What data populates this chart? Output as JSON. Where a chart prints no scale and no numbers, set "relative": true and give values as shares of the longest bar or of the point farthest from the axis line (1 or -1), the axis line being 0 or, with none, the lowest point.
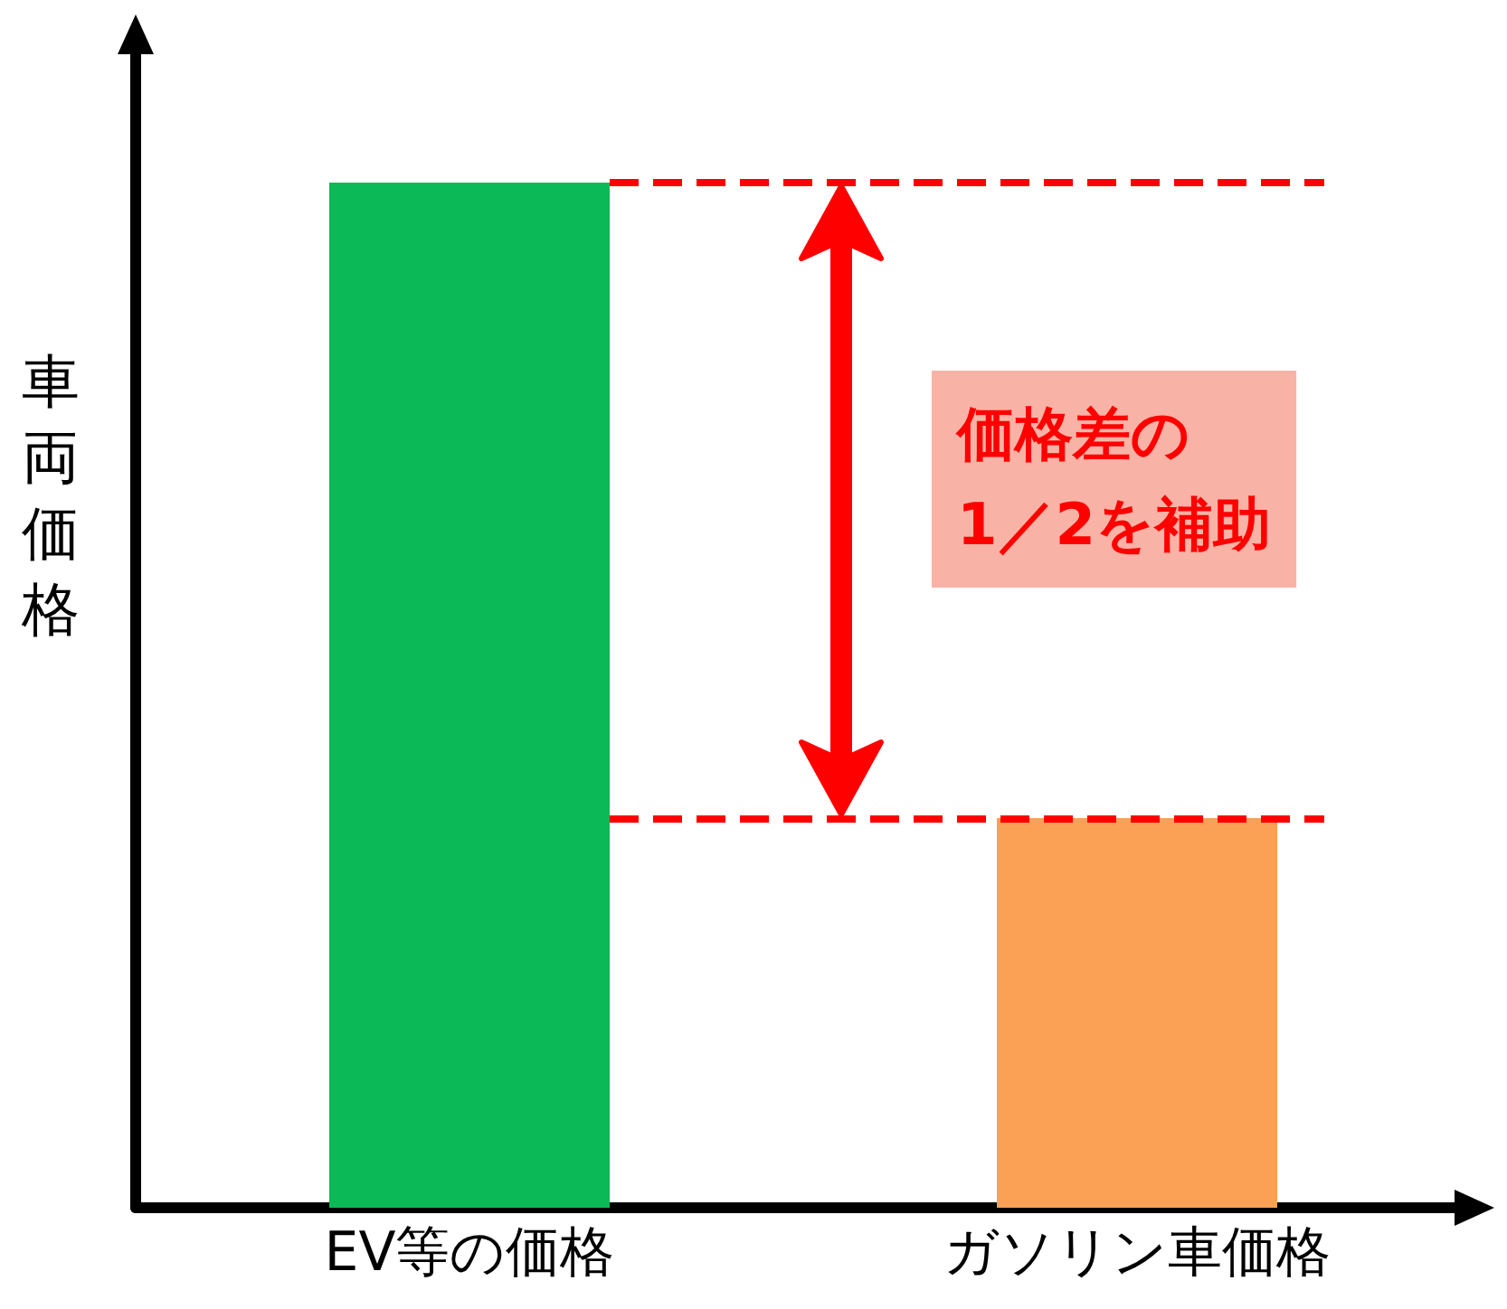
{
  "chart_data": {
    "type": "bar",
    "relative": true,
    "ylabel": "車両価格",
    "categories": [
      "EV等の価格",
      "ガソリン車価格"
    ],
    "values": [
      1,
      0.38
    ],
    "colors": [
      "#0bb956",
      "#fba155"
    ],
    "ref_lines": [
      {
        "axis": "y",
        "value": 1,
        "label": null,
        "color": "#ff0000",
        "line_style": "dashed"
      },
      {
        "axis": "y",
        "value": 0.38,
        "label": null,
        "color": "#ff0000",
        "line_style": "dashed"
      }
    ],
    "annotations": [
      "価格差の\n1／2を補助"
    ],
    "grid": false
  }
}
